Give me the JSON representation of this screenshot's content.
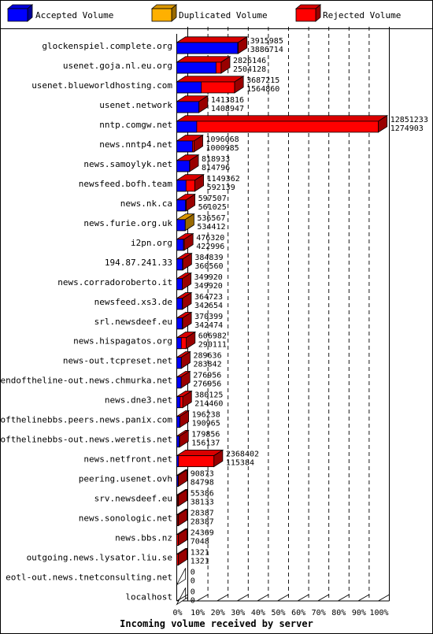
{
  "chart_data": {
    "type": "bar",
    "title": "",
    "xlabel": "Incoming volume received by server",
    "ylabel": "",
    "orientation": "horizontal",
    "stacking": "3d-overlay",
    "xlim": [
      0,
      100
    ],
    "x_unit": "%",
    "x_ticks": [
      "0%",
      "10%",
      "20%",
      "30%",
      "40%",
      "50%",
      "60%",
      "70%",
      "80%",
      "90%",
      "100%"
    ],
    "grid": true,
    "legend_position": "top",
    "legend": [
      {
        "key": "accepted",
        "label": "Accepted Volume",
        "color": "#0000ff"
      },
      {
        "key": "duplicated",
        "label": "Duplicated Volume",
        "color": "#ffb000"
      },
      {
        "key": "rejected",
        "label": "Rejected Volume",
        "color": "#ff0000"
      }
    ],
    "max_total": 12851233,
    "categories": [
      {
        "server": "glockenspiel.complete.org",
        "total": 3915985,
        "accepted": 3886714,
        "dup": false
      },
      {
        "server": "usenet.goja.nl.eu.org",
        "total": 2826146,
        "accepted": 2504128,
        "dup": false
      },
      {
        "server": "usenet.blueworldhosting.com",
        "total": 3687215,
        "accepted": 1564860,
        "dup": false
      },
      {
        "server": "usenet.network",
        "total": 1413816,
        "accepted": 1408947,
        "dup": false
      },
      {
        "server": "nntp.comgw.net",
        "total": 12851233,
        "accepted": 1274903,
        "dup": false
      },
      {
        "server": "news.nntp4.net",
        "total": 1096068,
        "accepted": 1000985,
        "dup": false
      },
      {
        "server": "news.samoylyk.net",
        "total": 818933,
        "accepted": 814796,
        "dup": false
      },
      {
        "server": "newsfeed.bofh.team",
        "total": 1149362,
        "accepted": 592139,
        "dup": false
      },
      {
        "server": "news.nk.ca",
        "total": 597507,
        "accepted": 561025,
        "dup": false
      },
      {
        "server": "news.furie.org.uk",
        "total": 536567,
        "accepted": 534412,
        "dup": true
      },
      {
        "server": "i2pn.org",
        "total": 476320,
        "accepted": 422996,
        "dup": false
      },
      {
        "server": "194.87.241.33",
        "total": 384839,
        "accepted": 360560,
        "dup": false
      },
      {
        "server": "news.corradoroberto.it",
        "total": 349920,
        "accepted": 349920,
        "dup": false
      },
      {
        "server": "newsfeed.xs3.de",
        "total": 364723,
        "accepted": 342654,
        "dup": false
      },
      {
        "server": "srl.newsdeef.eu",
        "total": 370399,
        "accepted": 342474,
        "dup": false
      },
      {
        "server": "news.hispagatos.org",
        "total": 606982,
        "accepted": 290111,
        "dup": false
      },
      {
        "server": "news-out.tcpreset.net",
        "total": 289636,
        "accepted": 283842,
        "dup": false
      },
      {
        "server": "endoftheline-out.news.chmurka.net",
        "total": 276956,
        "accepted": 276956,
        "dup": false
      },
      {
        "server": "news.dne3.net",
        "total": 380125,
        "accepted": 214460,
        "dup": false
      },
      {
        "server": "endofthelinebbs.peers.news.panix.com",
        "total": 196238,
        "accepted": 190965,
        "dup": false
      },
      {
        "server": "endofthelinebbs-out.news.weretis.net",
        "total": 179856,
        "accepted": 156137,
        "dup": false
      },
      {
        "server": "news.netfront.net",
        "total": 2368402,
        "accepted": 115384,
        "dup": false
      },
      {
        "server": "peering.usenet.ovh",
        "total": 90873,
        "accepted": 84798,
        "dup": false
      },
      {
        "server": "srv.newsdeef.eu",
        "total": 55386,
        "accepted": 38133,
        "dup": false
      },
      {
        "server": "news.sonologic.net",
        "total": 28387,
        "accepted": 28387,
        "dup": false
      },
      {
        "server": "news.bbs.nz",
        "total": 24369,
        "accepted": 7048,
        "dup": false
      },
      {
        "server": "outgoing.news.lysator.liu.se",
        "total": 1321,
        "accepted": 1321,
        "dup": false
      },
      {
        "server": "eotl-out.news.tnetconsulting.net",
        "total": 0,
        "accepted": 0,
        "dup": false
      },
      {
        "server": "localhost",
        "total": 0,
        "accepted": 0,
        "dup": false
      }
    ]
  }
}
